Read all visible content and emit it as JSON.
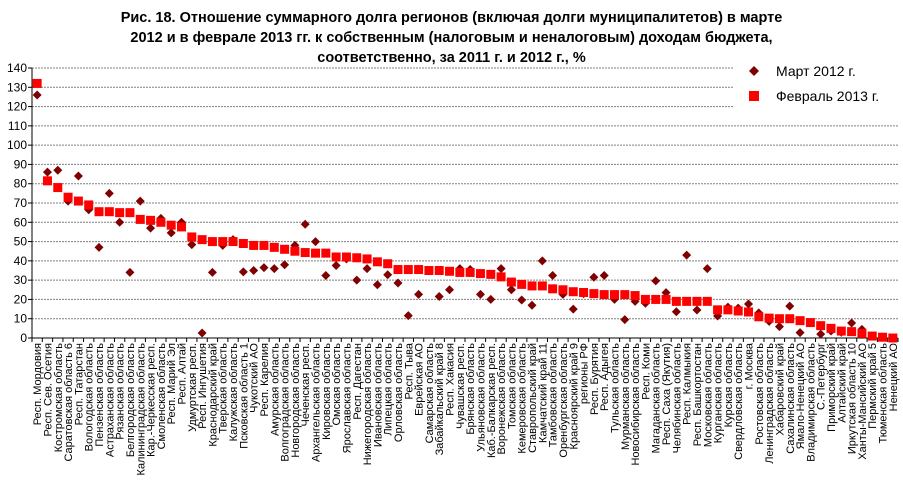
{
  "chart_data": {
    "type": "scatter",
    "title_lines": [
      "Рис. 18. Отношение суммарного долга регионов (включая долги муниципалитетов) в марте",
      "2012 и в феврале 2013 гг. к собственным (налоговым и неналоговым) доходам бюджета,",
      "соответственно, за 2011 г. и 2012 г., %"
    ],
    "xlabel": "",
    "ylabel": "",
    "ylim": [
      0,
      140
    ],
    "yticks": [
      0,
      10,
      20,
      30,
      40,
      50,
      60,
      70,
      80,
      90,
      100,
      110,
      120,
      130,
      140
    ],
    "grid": true,
    "legend_position": "top-right",
    "categories": [
      "Респ. Мордовия",
      "Респ. Сев. Осетия",
      "Костромская область",
      "Саратовская область 6",
      "Респ. Татарстан",
      "Вологодская область",
      "Пензенская область",
      "Астраханская область",
      "Рязанская область",
      "Белгородская область",
      "Калининградская область",
      "Кар.-Черкесская респ.",
      "Смоленская область",
      "Респ. Марий Эл",
      "Респ. Алтай",
      "Удмуртская респ.",
      "Респ. Ингушетия",
      "Краснодарский край",
      "Тверская область",
      "Калужская область",
      "Псковская область 1",
      "Чукотский АО",
      "Респ. Карелия",
      "Амурская область",
      "Волгоградская область",
      "Новгородская область",
      "Чеченская респ.",
      "Архангельская область",
      "Кировская область",
      "Омская область",
      "Ярославская область",
      "Респ. Дагестан",
      "Нижегородская область",
      "Ивановская область",
      "Липецкая область",
      "Орловская область",
      "Респ. Тыва",
      "Еврейская АО",
      "Самарская область",
      "Забайкальский край 8",
      "Респ. Хакасия",
      "Чувашская респ.",
      "Брянская область",
      "Ульяновская область",
      "Каб.-Балкарская респ.",
      "Воронежская область",
      "Томская область",
      "Кемеровская область",
      "Ставропольский край",
      "Камчатский край 11",
      "Тамбовская область",
      "Оренбургская область",
      "Красноярский край 9",
      "регионы РФ",
      "Респ. Бурятия",
      "Респ. Адыгея",
      "Тульская область",
      "Мурманская область",
      "Новосибирская область",
      "Респ. Коми",
      "Магаданская область",
      "Респ. Саха (Якутия)",
      "Челябинская область",
      "Респ. Калмыкия",
      "Респ. Башкортостан",
      "Московская область",
      "Курганская область",
      "Курская область",
      "Свердловская область",
      "г. Москва",
      "Ростовская область",
      "Ленинградская область",
      "Хабаровский край",
      "Сахалинская область",
      "Ямало-Ненецкий АО",
      "Владимирская область",
      "С.-Петербург",
      "Приморский край",
      "Алтайский край",
      "Иркутская область 10",
      "Ханты-Мансийский АО",
      "Пермский край 5",
      "Тюменская область",
      "Ненецкий АО"
    ],
    "series": [
      {
        "name": "Март 2012 г.",
        "marker": "diamond",
        "color": "#7f0000",
        "values": [
          126,
          86,
          87,
          71,
          84,
          66.5,
          47,
          75,
          60,
          34,
          71,
          57,
          62,
          54.5,
          60,
          48.4,
          2.6,
          34,
          48,
          51,
          34.3,
          35,
          36.5,
          36,
          38,
          48,
          59,
          50,
          32.4,
          37.6,
          41,
          30,
          36,
          27.6,
          32.8,
          28.5,
          11.6,
          22.6,
          35,
          21.5,
          25,
          36,
          35.5,
          22.6,
          20,
          36,
          25,
          19.7,
          17,
          40,
          32.4,
          22.6,
          15,
          23,
          31.5,
          32.4,
          20,
          9.5,
          19,
          18,
          29.6,
          23.5,
          13.6,
          43,
          14.5,
          36,
          11.4,
          16,
          15.5,
          17.6,
          13,
          8.6,
          5.9,
          16.5,
          2.8,
          8,
          2,
          3.6,
          3,
          7.8,
          4.5,
          1,
          0.4,
          0
        ]
      },
      {
        "name": "Февраль 2013 г.",
        "marker": "square",
        "color": "#ff0000",
        "values": [
          132,
          81.5,
          78,
          73,
          71,
          69,
          65.5,
          65.5,
          65,
          65,
          61.5,
          61,
          60,
          58.5,
          57.6,
          52.4,
          51,
          50,
          50,
          50,
          49,
          48,
          48,
          47,
          46,
          45,
          44.3,
          44,
          44,
          42,
          42,
          41.6,
          41,
          39.5,
          38.5,
          35.5,
          35.5,
          35.5,
          35,
          35,
          34.6,
          34,
          34,
          33.4,
          33,
          31.7,
          29,
          27.8,
          27,
          27,
          25.5,
          25,
          24,
          23.6,
          23,
          22.5,
          22.5,
          22.5,
          22,
          20,
          20,
          20,
          19,
          19,
          19,
          19,
          14.6,
          14.6,
          14,
          13.5,
          11,
          10.3,
          10,
          10,
          9,
          8,
          6.4,
          5,
          3.6,
          3.3,
          2.4,
          1,
          0.4,
          0
        ]
      }
    ]
  }
}
